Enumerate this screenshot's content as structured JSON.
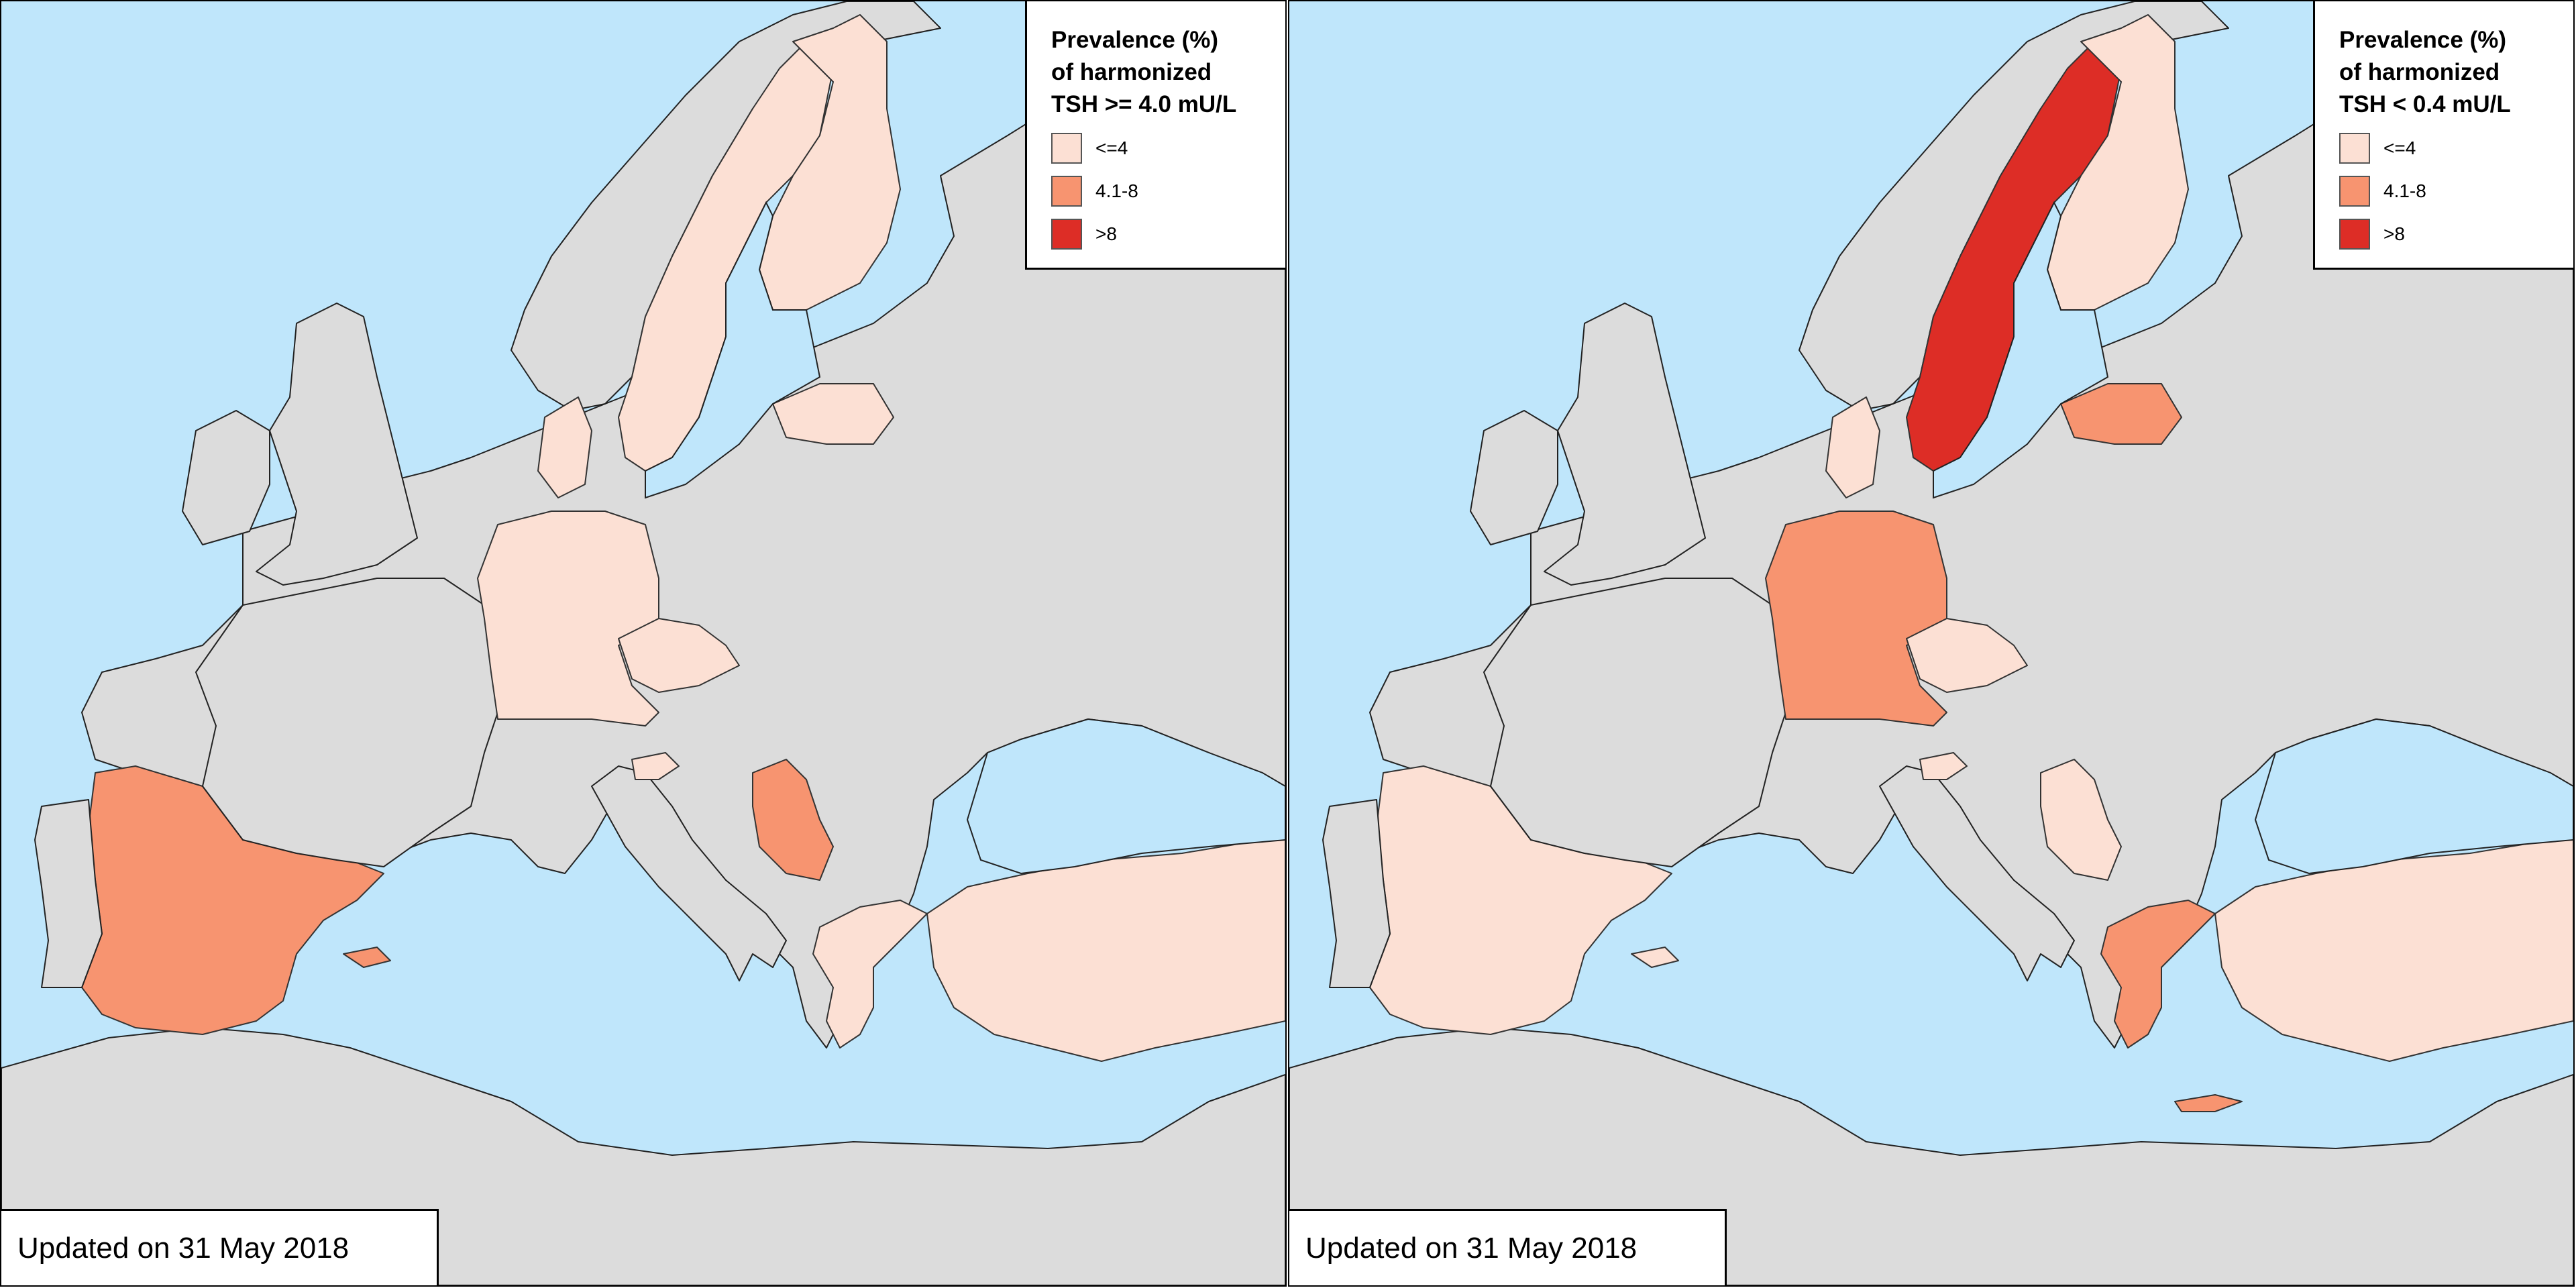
{
  "colors": {
    "sea": "#bfe6fb",
    "land_no_data": "#dcdcdc",
    "class_low": "#fce0d4",
    "class_mid": "#f79470",
    "class_high": "#dd2d26",
    "border": "#333333"
  },
  "maps": [
    {
      "legend": {
        "title": "Prevalence (%)\nof harmonized\nTSH >= 4.0 mU/L",
        "classes": [
          {
            "label": "<=4",
            "color": "#fce0d4"
          },
          {
            "label": "4.1-8",
            "color": "#f79470"
          },
          {
            "label": ">8",
            "color": "#dd2d26"
          }
        ]
      },
      "updated": "Updated on 31 May 2018",
      "countries": {
        "spain": "4.1-8",
        "serbia": "4.1-8",
        "germany": "<=4",
        "czechia": "<=4",
        "denmark": "<=4",
        "sweden": "<=4",
        "finland": "<=4",
        "latvia": "<=4",
        "slovenia": "<=4",
        "greece": "<=4",
        "turkey": "<=4",
        "portugal": "no data",
        "norway": "no data",
        "france": "no data",
        "italy": "no data",
        "poland": "no data",
        "united_kingdom": "no data",
        "ireland": "no data"
      }
    },
    {
      "legend": {
        "title": "Prevalence (%)\nof harmonized\nTSH < 0.4 mU/L",
        "classes": [
          {
            "label": "<=4",
            "color": "#fce0d4"
          },
          {
            "label": "4.1-8",
            "color": "#f79470"
          },
          {
            "label": ">8",
            "color": "#dd2d26"
          }
        ]
      },
      "updated": "Updated on 31 May 2018",
      "countries": {
        "sweden": ">8",
        "germany": "4.1-8",
        "latvia": "4.1-8",
        "greece": "4.1-8",
        "spain": "<=4",
        "czechia": "<=4",
        "denmark": "<=4",
        "finland": "<=4",
        "slovenia": "<=4",
        "serbia": "<=4",
        "turkey": "<=4",
        "portugal": "no data",
        "norway": "no data",
        "france": "no data",
        "italy": "no data",
        "poland": "no data",
        "united_kingdom": "no data",
        "ireland": "no data"
      }
    }
  ]
}
